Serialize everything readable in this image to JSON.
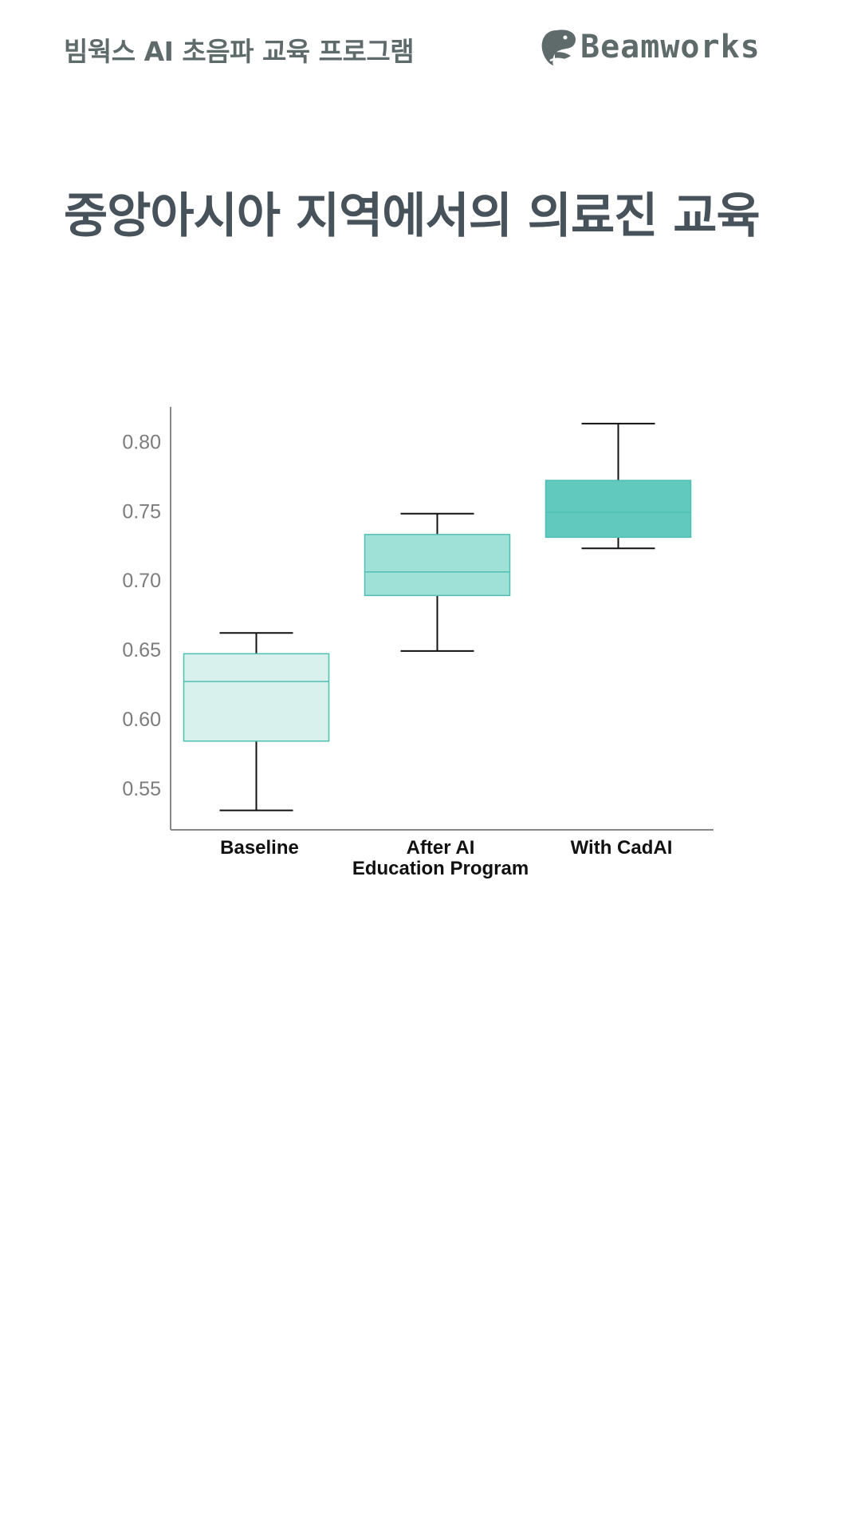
{
  "header": {
    "program_title": "빔웍스 AI 초음파 교육 프로그램",
    "logo_text": "Beamworks",
    "logo_icon": "whale-icon"
  },
  "page": {
    "title": "중앙아시아 지역에서의 의료진 교육"
  },
  "colors": {
    "text_dark": "#47525a",
    "text_muted": "#5f6b6b",
    "box_stroke": "#4fbfb4"
  },
  "chart_data": {
    "type": "box",
    "title": "",
    "xlabel": "",
    "ylabel": "",
    "ylim": [
      0.52,
      0.825
    ],
    "yticks": [
      "0.55",
      "0.60",
      "0.65",
      "0.70",
      "0.75",
      "0.80"
    ],
    "categories": [
      {
        "label_lines": [
          "Baseline"
        ],
        "color": "#d8f1ed",
        "min": 0.534,
        "q1": 0.584,
        "median": 0.627,
        "q3": 0.647,
        "max": 0.662
      },
      {
        "label_lines": [
          "After AI",
          "Education Program"
        ],
        "color": "#9fe0d7",
        "min": 0.649,
        "q1": 0.689,
        "median": 0.706,
        "q3": 0.733,
        "max": 0.748
      },
      {
        "label_lines": [
          "With CadAI"
        ],
        "color": "#61c9be",
        "min": 0.723,
        "q1": 0.731,
        "median": 0.749,
        "q3": 0.772,
        "max": 0.813
      }
    ]
  }
}
